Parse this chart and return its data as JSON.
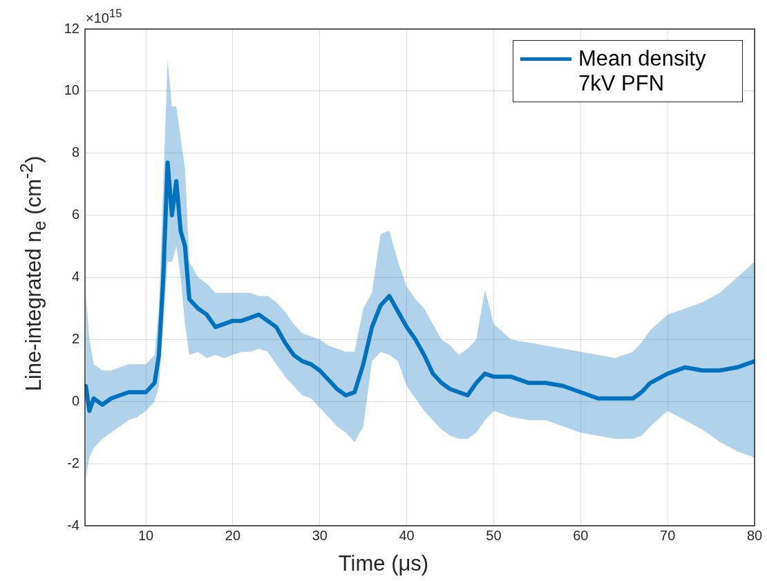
{
  "chart_data": {
    "type": "line",
    "xlabel": "Time (μs)",
    "ylabel": "Line-integrated n$_{e}$ (cm$^{-2}$)",
    "annotations": [
      "×10$^{15}$"
    ],
    "xlim": [
      3,
      80
    ],
    "xticks": [
      10,
      20,
      30,
      40,
      50,
      60,
      70,
      80
    ],
    "ylim": [
      -4,
      12
    ],
    "yticks": [
      -4,
      -2,
      0,
      2,
      4,
      6,
      8,
      10,
      12
    ],
    "grid": true,
    "legend": "top right",
    "marker": "none",
    "line_style": "solid",
    "x": [
      3.1,
      3.5,
      4,
      5,
      6,
      7,
      8,
      9,
      10,
      11,
      11.5,
      12,
      12.5,
      13,
      13.5,
      14,
      14.5,
      15,
      16,
      17,
      18,
      19,
      20,
      21,
      22,
      23,
      24,
      25,
      26,
      27,
      28,
      29,
      30,
      31,
      32,
      33,
      34,
      35,
      36,
      37,
      38,
      39,
      40,
      41,
      42,
      43,
      44,
      45,
      46,
      47,
      48,
      49,
      50,
      52,
      54,
      56,
      58,
      60,
      62,
      64,
      66,
      67,
      68,
      70,
      72,
      74,
      76,
      78,
      80
    ],
    "series": [
      {
        "name": "Mean density 7kV PFN",
        "color": "#0072bd",
        "values": [
          0.5,
          -0.3,
          0.1,
          -0.1,
          0.1,
          0.2,
          0.3,
          0.3,
          0.3,
          0.6,
          1.5,
          4.0,
          7.7,
          6.0,
          7.1,
          5.5,
          5.0,
          3.3,
          3.0,
          2.8,
          2.4,
          2.5,
          2.6,
          2.6,
          2.7,
          2.8,
          2.6,
          2.4,
          1.9,
          1.5,
          1.3,
          1.2,
          1.0,
          0.7,
          0.4,
          0.2,
          0.3,
          1.2,
          2.4,
          3.1,
          3.4,
          2.9,
          2.4,
          2.0,
          1.5,
          0.9,
          0.6,
          0.4,
          0.3,
          0.2,
          0.6,
          0.9,
          0.8,
          0.8,
          0.6,
          0.6,
          0.5,
          0.3,
          0.1,
          0.1,
          0.1,
          0.3,
          0.6,
          0.9,
          1.1,
          1.0,
          1.0,
          1.1,
          1.3
        ],
        "upper": [
          3.5,
          2.0,
          1.2,
          1.0,
          1.0,
          1.1,
          1.2,
          1.2,
          1.2,
          1.5,
          3.0,
          7.0,
          11.0,
          9.5,
          9.5,
          8.5,
          7.5,
          4.5,
          4.0,
          3.8,
          3.5,
          3.5,
          3.5,
          3.5,
          3.5,
          3.4,
          3.4,
          3.2,
          2.9,
          2.5,
          2.2,
          2.1,
          2.0,
          1.8,
          1.7,
          1.6,
          1.6,
          3.0,
          3.5,
          5.4,
          5.5,
          4.5,
          3.7,
          3.3,
          3.0,
          2.5,
          2.0,
          1.8,
          1.5,
          1.7,
          2.0,
          3.6,
          2.5,
          2.0,
          1.9,
          1.8,
          1.7,
          1.6,
          1.5,
          1.4,
          1.6,
          1.9,
          2.3,
          2.8,
          3.0,
          3.2,
          3.5,
          4.0,
          4.5
        ],
        "lower": [
          -2.5,
          -1.8,
          -1.5,
          -1.2,
          -1.0,
          -0.8,
          -0.6,
          -0.5,
          -0.3,
          0.0,
          0.5,
          2.5,
          4.5,
          4.5,
          5.0,
          4.0,
          2.5,
          1.5,
          1.6,
          1.4,
          1.5,
          1.4,
          1.5,
          1.6,
          1.6,
          1.7,
          1.6,
          1.2,
          0.8,
          0.5,
          0.2,
          0.1,
          -0.2,
          -0.5,
          -0.8,
          -1.0,
          -1.3,
          -0.8,
          1.3,
          1.6,
          1.5,
          1.3,
          0.5,
          0.1,
          -0.3,
          -0.6,
          -0.9,
          -1.1,
          -1.2,
          -1.2,
          -1.0,
          -0.6,
          -0.3,
          -0.5,
          -0.6,
          -0.6,
          -0.8,
          -1.0,
          -1.1,
          -1.2,
          -1.2,
          -1.1,
          -0.8,
          -0.3,
          -0.6,
          -0.9,
          -1.3,
          -1.6,
          -1.8
        ]
      }
    ]
  }
}
